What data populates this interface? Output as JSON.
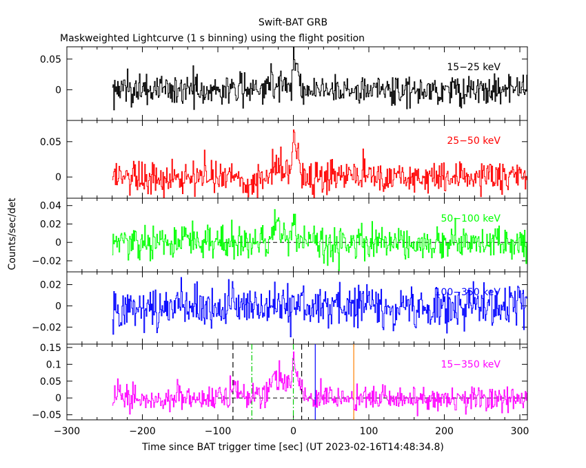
{
  "figure": {
    "title": "Swift-BAT GRB",
    "subtitle": "Maskweighted Lightcurve (1 s binning) using the flight position",
    "ylabel": "Counts/sec/det",
    "xlabel": "Time since BAT trigger time [sec] (UT 2023-02-16T14:48:34.8)"
  },
  "chart_data": [
    {
      "type": "line",
      "band": "15-25 keV",
      "series_label": "15−25 keV",
      "color": "#000000",
      "xlim": [
        -300,
        310
      ],
      "ylim": [
        -0.05,
        0.07
      ],
      "yticks": [
        0,
        0.05
      ],
      "ytick_labels": [
        "0",
        "0.05"
      ],
      "x_start": -240,
      "x_end": 310,
      "baseline": 0,
      "noise_sigma": 0.013,
      "clip": [
        -0.05,
        0.07
      ],
      "peaks": [
        {
          "t": -25,
          "amp": 0.015,
          "width": 12
        },
        {
          "t": 0,
          "amp": 0.05,
          "width": 1.8
        },
        {
          "t": 5,
          "amp": 0.03,
          "width": 2.5
        }
      ]
    },
    {
      "type": "line",
      "band": "25-50 keV",
      "series_label": "25−50 keV",
      "color": "#ff0000",
      "xlim": [
        -300,
        310
      ],
      "ylim": [
        -0.03,
        0.08
      ],
      "yticks": [
        0,
        0.05
      ],
      "ytick_labels": [
        "0",
        "0.05"
      ],
      "x_start": -240,
      "x_end": 310,
      "baseline": 0,
      "noise_sigma": 0.012,
      "clip": [
        -0.03,
        0.08
      ],
      "peaks": [
        {
          "t": -20,
          "amp": 0.015,
          "width": 12
        },
        {
          "t": 0,
          "amp": 0.055,
          "width": 1.8
        },
        {
          "t": 5,
          "amp": 0.03,
          "width": 2.5
        }
      ]
    },
    {
      "type": "line",
      "band": "50-100 keV",
      "series_label": "50−100 keV",
      "color": "#00ff00",
      "xlim": [
        -300,
        310
      ],
      "ylim": [
        -0.032,
        0.048
      ],
      "yticks": [
        -0.02,
        0,
        0.02,
        0.04
      ],
      "ytick_labels": [
        "−0.02",
        "0",
        "0.02",
        "0.04"
      ],
      "dashed_zero": true,
      "x_start": -240,
      "x_end": 310,
      "baseline": 0,
      "noise_sigma": 0.009,
      "clip": [
        -0.032,
        0.048
      ],
      "peaks": [
        {
          "t": -22,
          "amp": 0.028,
          "width": 3
        },
        {
          "t": 0,
          "amp": 0.03,
          "width": 2
        }
      ]
    },
    {
      "type": "line",
      "band": "100-350 keV",
      "series_label": "100−350 keV",
      "color": "#0000ff",
      "xlim": [
        -300,
        310
      ],
      "ylim": [
        -0.036,
        0.032
      ],
      "yticks": [
        -0.02,
        0,
        0.02
      ],
      "ytick_labels": [
        "−0.02",
        "0",
        "0.02"
      ],
      "x_start": -240,
      "x_end": 310,
      "baseline": 0,
      "noise_sigma": 0.01,
      "clip": [
        -0.036,
        0.032
      ],
      "peaks": []
    },
    {
      "type": "line",
      "band": "15-350 keV",
      "series_label": "15−350 keV",
      "color": "#ff00ff",
      "xlim": [
        -300,
        310
      ],
      "ylim": [
        -0.065,
        0.16
      ],
      "yticks": [
        -0.05,
        0,
        0.05,
        0.1,
        0.15
      ],
      "ytick_labels": [
        "−0.05",
        "0",
        "0.05",
        "0.1",
        "0.15"
      ],
      "dashed_zero": true,
      "xticks": [
        -300,
        -200,
        -100,
        0,
        100,
        200,
        300
      ],
      "xtick_labels": [
        "−300",
        "−200",
        "−100",
        "0",
        "100",
        "200",
        "300"
      ],
      "x_start": -240,
      "x_end": 310,
      "baseline": 0,
      "noise_sigma": 0.02,
      "clip": [
        -0.065,
        0.16
      ],
      "peaks": [
        {
          "t": -78,
          "amp": 0.05,
          "width": 3
        },
        {
          "t": -20,
          "amp": 0.06,
          "width": 10
        },
        {
          "t": 0,
          "amp": 0.1,
          "width": 1.8
        },
        {
          "t": 5,
          "amp": 0.06,
          "width": 3
        }
      ],
      "vertical_markers": [
        {
          "t": -80,
          "color": "#000000",
          "style": "dashed"
        },
        {
          "t": -55,
          "color": "#00cc00",
          "style": "dashdot"
        },
        {
          "t": 0,
          "color": "#00cc00",
          "style": "dashdot"
        },
        {
          "t": 11,
          "color": "#000000",
          "style": "dashed"
        },
        {
          "t": 29,
          "color": "#0000ff",
          "style": "solid"
        },
        {
          "t": 80,
          "color": "#ff8000",
          "style": "solid"
        }
      ]
    }
  ]
}
